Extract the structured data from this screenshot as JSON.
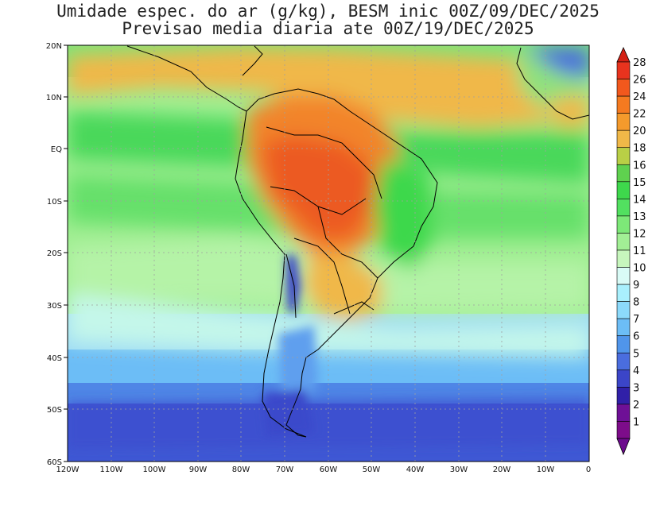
{
  "title_line1": "Umidade espec. do ar (g/kg), BESM inic 00Z/09/DEC/2025",
  "title_line2": "Previsao media diaria ate 00Z/19/DEC/2025",
  "lat_labels": [
    "20N",
    "10N",
    "EQ",
    "10S",
    "20S",
    "30S",
    "40S",
    "50S",
    "60S"
  ],
  "lon_labels": [
    "120W",
    "110W",
    "100W",
    "90W",
    "80W",
    "70W",
    "60W",
    "50W",
    "40W",
    "30W",
    "20W",
    "10W",
    "0"
  ],
  "colorbar": {
    "labels": [
      "28",
      "26",
      "24",
      "22",
      "20",
      "18",
      "16",
      "15",
      "14",
      "13",
      "12",
      "11",
      "10",
      "9",
      "8",
      "7",
      "6",
      "5",
      "4",
      "3",
      "2",
      "1"
    ],
    "colors": [
      "#e8331e",
      "#f2581d",
      "#f57a20",
      "#f49a2c",
      "#f0b848",
      "#b9cf46",
      "#5fd14f",
      "#3ed84c",
      "#52e060",
      "#7de878",
      "#a2ef95",
      "#c7f6bd",
      "#d9fbf6",
      "#a9f0fd",
      "#8cdafb",
      "#6cbdf6",
      "#5095ea",
      "#4a6dde",
      "#3b45c8",
      "#3020a8",
      "#6e1096",
      "#7d0c8a"
    ],
    "top_cap_color": "#d42115",
    "bottom_cap_color": "#6d0b8d"
  }
}
